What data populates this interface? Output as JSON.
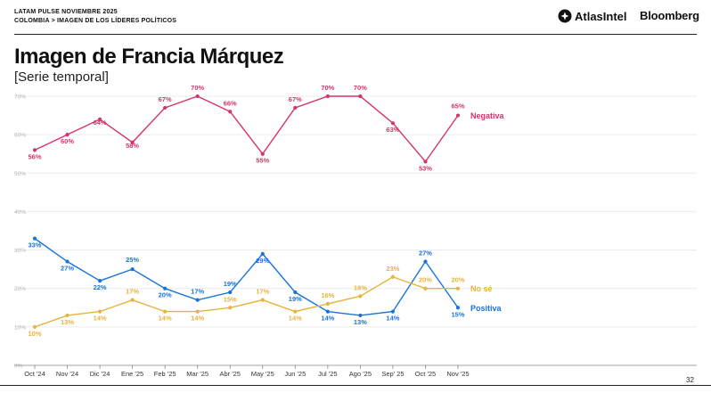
{
  "header": {
    "line1": "LATAM PULSE NOVIEMBRE 2025",
    "line2": "COLOMBIA > IMAGEN DE LOS LÍDERES POLÍTICOS",
    "brand1": "AtlasIntel",
    "brand2": "Bloomberg"
  },
  "title": "Imagen de Francia Márquez",
  "subtitle": "[Serie temporal]",
  "page_number": "32",
  "colors": {
    "negativa": "#d6336c",
    "positiva": "#1a73d9",
    "nose": "#e6b43c"
  },
  "chart_data": {
    "type": "line",
    "categories": [
      "Oct '24",
      "Nov '24",
      "Dic '24",
      "Ene '25",
      "Feb '25",
      "Mar '25",
      "Abr '25",
      "May '25",
      "Jun '25",
      "Jul '25",
      "Ago '25",
      "Sep' 25",
      "Oct '25",
      "Nov '25"
    ],
    "yticks": [
      "0%",
      "10%",
      "20%",
      "30%",
      "40%",
      "50%",
      "60%",
      "70%"
    ],
    "ylim": [
      0,
      70
    ],
    "grid": true,
    "series": [
      {
        "name": "Negativa",
        "key": "negativa",
        "values": [
          56,
          60,
          64,
          58,
          67,
          70,
          66,
          55,
          67,
          70,
          70,
          63,
          53,
          65
        ],
        "labels": [
          "56%",
          "60%",
          "64%",
          "58%",
          "67%",
          "70%",
          "66%",
          "55%",
          "67%",
          "70%",
          "70%",
          "63%",
          "53%",
          "65%"
        ]
      },
      {
        "name": "Positiva",
        "key": "positiva",
        "values": [
          33,
          27,
          22,
          25,
          20,
          17,
          19,
          29,
          19,
          14,
          13,
          14,
          27,
          15
        ],
        "labels": [
          "33%",
          "27%",
          "22%",
          "25%",
          "20%",
          "17%",
          "19%",
          "29%",
          "19%",
          "14%",
          "13%",
          "14%",
          "27%",
          "15%"
        ]
      },
      {
        "name": "No sé",
        "key": "nose",
        "values": [
          10,
          13,
          14,
          17,
          14,
          14,
          15,
          17,
          14,
          16,
          18,
          23,
          20,
          20
        ],
        "labels": [
          "10%",
          "13%",
          "14%",
          "17%",
          "14%",
          "14%",
          "15%",
          "17%",
          "14%",
          "16%",
          "18%",
          "23%",
          "20%",
          "20%"
        ]
      }
    ]
  }
}
